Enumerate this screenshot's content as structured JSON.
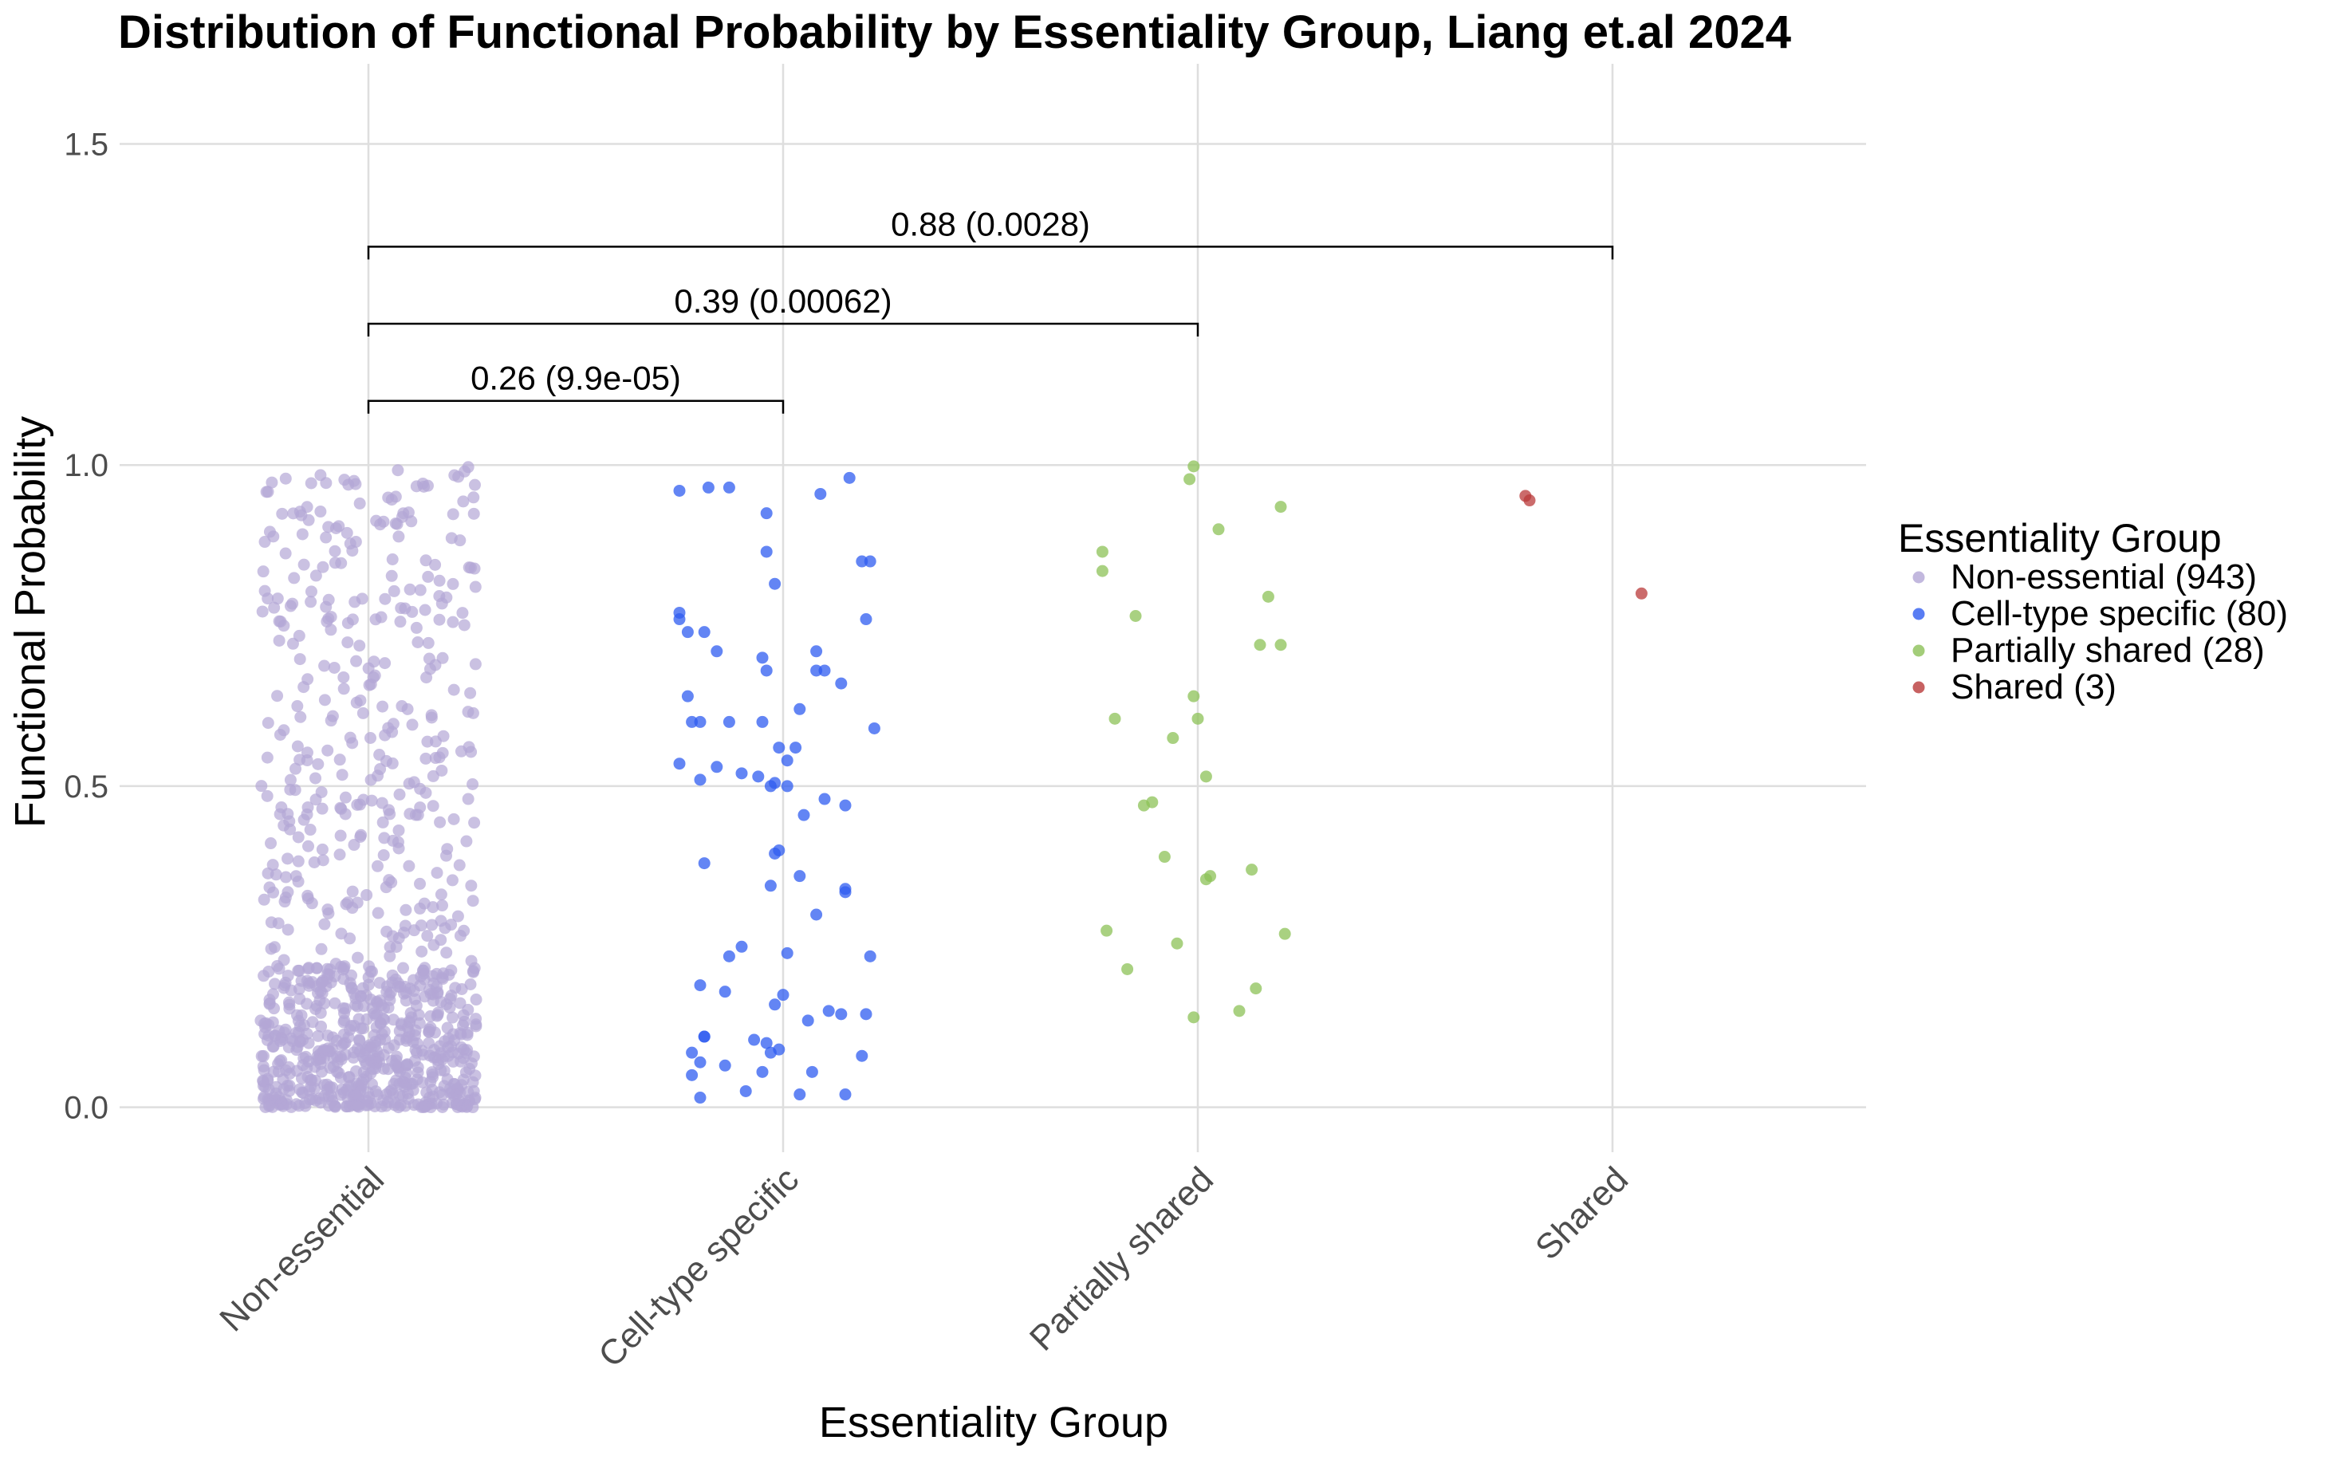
{
  "chart_data": {
    "type": "scatter",
    "title": "Distribution of Functional Probability by Essentiality Group, Liang et.al 2024",
    "xlabel": "Essentiality Group",
    "ylabel": "Functional Probability",
    "categories": [
      "Non-essential",
      "Cell-type specific",
      "Partially shared",
      "Shared"
    ],
    "ylim": [
      -0.07,
      1.6
    ],
    "yticks": [
      "0.0",
      "0.5",
      "1.0",
      "1.5"
    ],
    "ytick_values": [
      0.0,
      0.5,
      1.0,
      1.5
    ],
    "grid": true,
    "legend": {
      "title": "Essentiality Group",
      "placement": "right",
      "entries": [
        "Non-essential (943)",
        "Cell-type specific (80)",
        "Partially shared (28)",
        "Shared (3)"
      ]
    },
    "brackets": [
      {
        "from": "Non-essential",
        "to": "Cell-type specific",
        "y": 1.1,
        "label": "0.26 (9.9e-05)"
      },
      {
        "from": "Non-essential",
        "to": "Partially shared",
        "y": 1.22,
        "label": "0.39 (0.00062)"
      },
      {
        "from": "Non-essential",
        "to": "Shared",
        "y": 1.34,
        "label": "0.88 (0.0028)"
      }
    ],
    "series": [
      {
        "name": "Non-essential (943)",
        "color": "#b3a6d6",
        "count": 943,
        "distribution": "skewed-low",
        "x_jitter": 0.26
      },
      {
        "name": "Cell-type specific (80)",
        "color": "#2f5cf0",
        "category": "Cell-type specific",
        "dx": [
          -0.25,
          -0.18,
          -0.13,
          0.09,
          -0.04,
          0.16,
          -0.04,
          0.21,
          0.19,
          -0.02,
          0.2,
          -0.25,
          -0.23,
          -0.19,
          -0.16,
          -0.05,
          -0.04,
          0.1,
          0.14,
          -0.23,
          -0.22,
          -0.2,
          -0.13,
          -0.05,
          0.04,
          0.22,
          -0.01,
          0.03,
          0.01,
          -0.25,
          -0.16,
          -0.1,
          -0.06,
          -0.2,
          0.01,
          -0.03,
          -0.02,
          0.1,
          0.05,
          -0.01,
          -0.02,
          -0.19,
          0.04,
          -0.03,
          0.15,
          0.15,
          0.08,
          -0.1,
          -0.13,
          0.21,
          0.01,
          -0.2,
          -0.14,
          0.0,
          0.11,
          0.14,
          0.2,
          0.06,
          -0.19,
          -0.19,
          -0.07,
          -0.04,
          -0.01,
          0.19,
          -0.03,
          -0.22,
          -0.2,
          -0.14,
          0.07,
          -0.05,
          0.04,
          -0.2,
          -0.09,
          0.15,
          0.08,
          0.08,
          -0.25,
          -0.02,
          0.15,
          -0.22
        ],
        "y": [
          0.96,
          0.965,
          0.965,
          0.955,
          0.925,
          0.98,
          0.865,
          0.85,
          0.85,
          0.815,
          0.76,
          0.76,
          0.74,
          0.74,
          0.71,
          0.7,
          0.68,
          0.68,
          0.66,
          0.64,
          0.6,
          0.6,
          0.6,
          0.6,
          0.62,
          0.59,
          0.56,
          0.56,
          0.54,
          0.535,
          0.53,
          0.52,
          0.515,
          0.51,
          0.5,
          0.5,
          0.505,
          0.48,
          0.455,
          0.4,
          0.395,
          0.38,
          0.36,
          0.345,
          0.335,
          0.34,
          0.3,
          0.25,
          0.235,
          0.235,
          0.24,
          0.19,
          0.18,
          0.175,
          0.15,
          0.145,
          0.145,
          0.135,
          0.11,
          0.11,
          0.105,
          0.1,
          0.09,
          0.08,
          0.085,
          0.085,
          0.07,
          0.065,
          0.055,
          0.055,
          0.02,
          0.015,
          0.025,
          0.02,
          0.71,
          0.68,
          0.77,
          0.16,
          0.47,
          0.05
        ]
      },
      {
        "name": "Partially shared (28)",
        "color": "#8cc157",
        "category": "Partially shared",
        "dx": [
          -0.01,
          -0.02,
          0.2,
          0.05,
          -0.23,
          -0.23,
          0.17,
          -0.15,
          0.15,
          0.2,
          -0.01,
          -0.2,
          0.0,
          -0.06,
          0.02,
          -0.11,
          -0.13,
          -0.08,
          0.13,
          0.03,
          0.02,
          -0.22,
          -0.05,
          -0.17,
          0.21,
          0.14,
          0.1,
          -0.01
        ],
        "y": [
          0.998,
          0.978,
          0.935,
          0.9,
          0.865,
          0.835,
          0.795,
          0.765,
          0.72,
          0.72,
          0.64,
          0.605,
          0.605,
          0.575,
          0.515,
          0.475,
          0.47,
          0.39,
          0.37,
          0.36,
          0.355,
          0.275,
          0.255,
          0.215,
          0.27,
          0.185,
          0.15,
          0.14
        ]
      },
      {
        "name": "Shared (3)",
        "color": "#b93a3a",
        "category": "Shared",
        "dx": [
          -0.21,
          -0.2,
          0.07
        ],
        "y": [
          0.952,
          0.945,
          0.8
        ]
      }
    ]
  }
}
